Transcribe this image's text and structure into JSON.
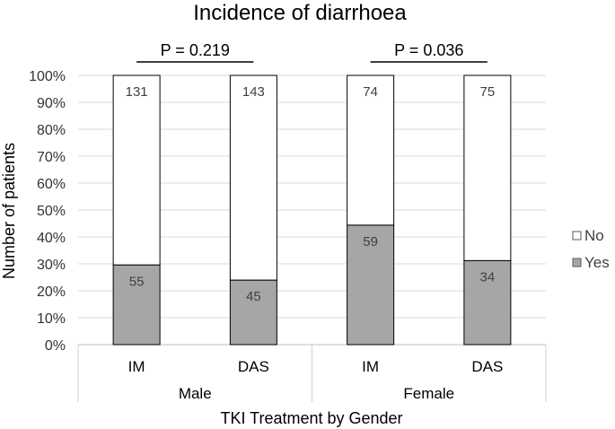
{
  "chart_data": {
    "type": "bar",
    "stacked": true,
    "normalized": true,
    "title": "Incidence of diarrhoea",
    "xlabel": "TKI Treatment by Gender",
    "ylabel": "Number of patients",
    "ylim": [
      0,
      100
    ],
    "y_ticks": [
      "0%",
      "10%",
      "20%",
      "30%",
      "40%",
      "50%",
      "60%",
      "70%",
      "80%",
      "90%",
      "100%"
    ],
    "categories": [
      "IM",
      "DAS",
      "IM",
      "DAS"
    ],
    "groups": [
      {
        "label": "Male",
        "categories": [
          "IM",
          "DAS"
        ]
      },
      {
        "label": "Female",
        "categories": [
          "IM",
          "DAS"
        ]
      }
    ],
    "series": [
      {
        "name": "Yes",
        "values": [
          55,
          45,
          59,
          34
        ],
        "color": "#a6a6a6"
      },
      {
        "name": "No",
        "values": [
          131,
          143,
          74,
          75
        ],
        "color": "#ffffff"
      }
    ],
    "annotations": [
      {
        "text": "P = 0.219",
        "group": "Male"
      },
      {
        "text": "P = 0.036",
        "group": "Female"
      }
    ],
    "legend": {
      "position": "right",
      "order": [
        "No",
        "Yes"
      ]
    },
    "grid": true
  }
}
